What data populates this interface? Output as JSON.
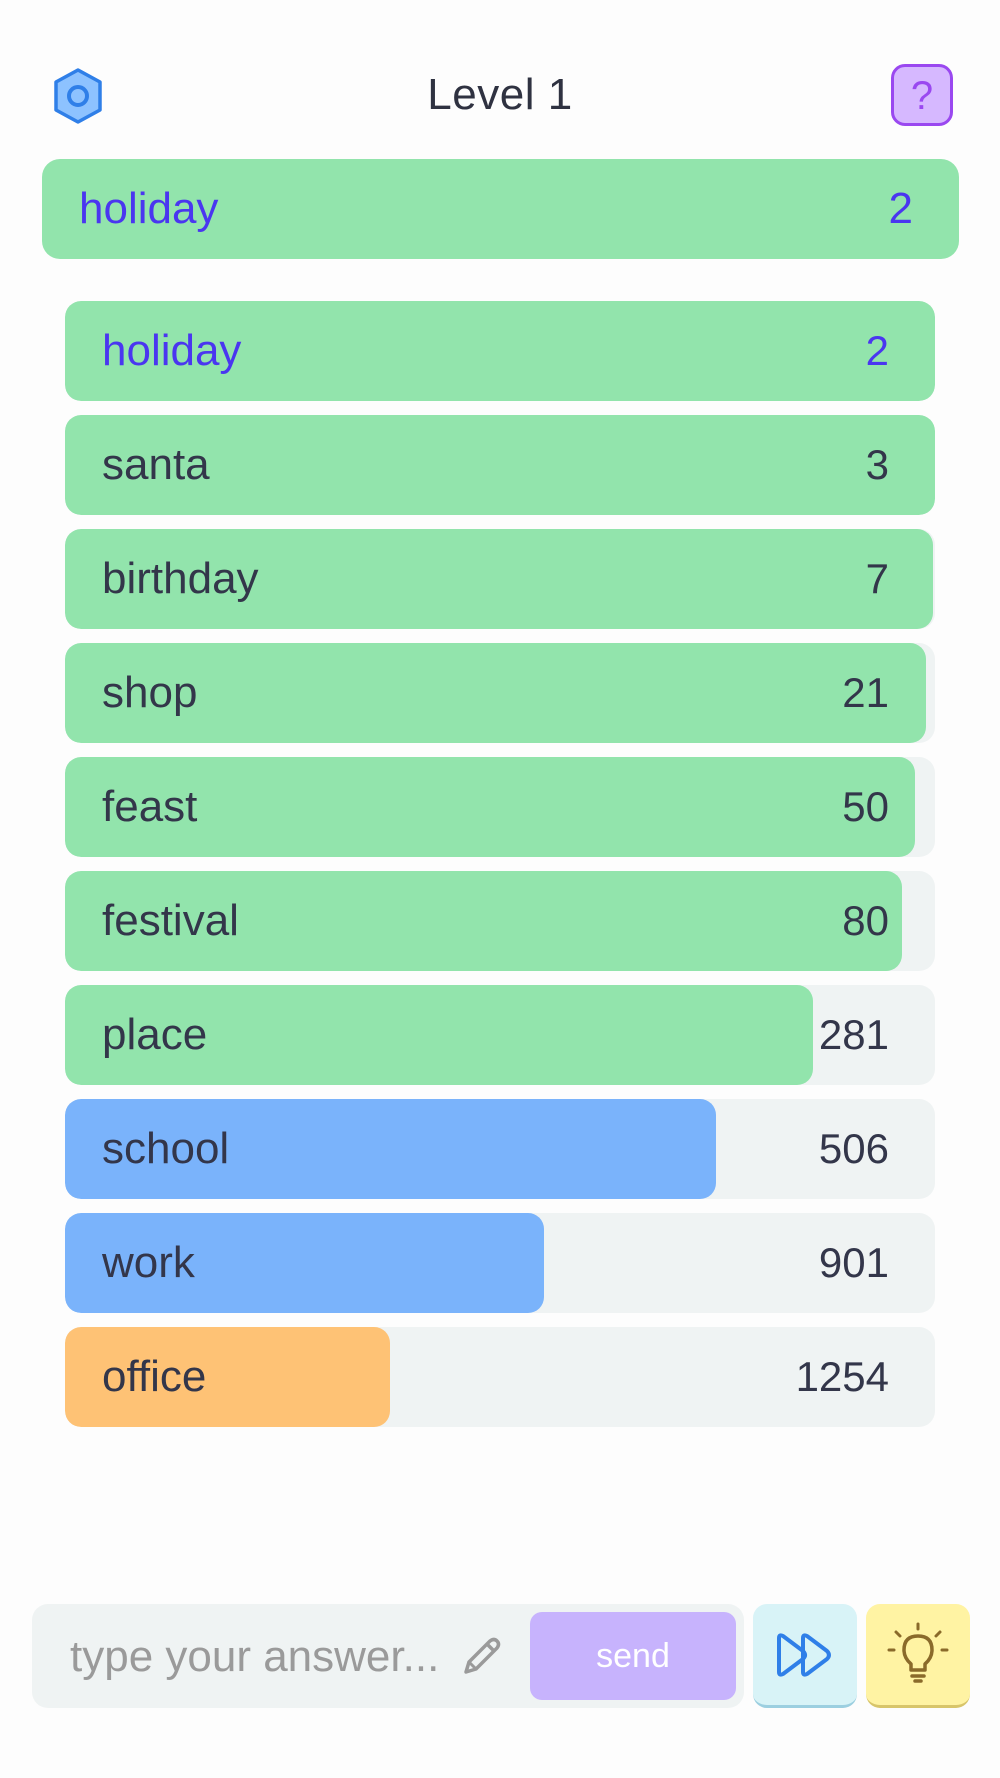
{
  "header": {
    "title": "Level 1",
    "settings_icon": "gear-icon",
    "help_icon": "question-icon",
    "help_text": "?"
  },
  "last_guess": {
    "word": "holiday",
    "rank": "2",
    "color": "#92e4ac"
  },
  "guesses": [
    {
      "word": "holiday",
      "rank": "2",
      "closeness": 1.0,
      "color": "#92e4ac",
      "current": true
    },
    {
      "word": "santa",
      "rank": "3",
      "closeness": 1.0,
      "color": "#92e4ac",
      "current": false
    },
    {
      "word": "birthday",
      "rank": "7",
      "closeness": 0.998,
      "color": "#92e4ac",
      "current": false
    },
    {
      "word": "shop",
      "rank": "21",
      "closeness": 0.99,
      "color": "#92e4ac",
      "current": false
    },
    {
      "word": "feast",
      "rank": "50",
      "closeness": 0.977,
      "color": "#92e4ac",
      "current": false
    },
    {
      "word": "festival",
      "rank": "80",
      "closeness": 0.962,
      "color": "#92e4ac",
      "current": false
    },
    {
      "word": "place",
      "rank": "281",
      "closeness": 0.86,
      "color": "#92e4ac",
      "current": false
    },
    {
      "word": "school",
      "rank": "506",
      "closeness": 0.748,
      "color": "#7ab3fb",
      "current": false
    },
    {
      "word": "work",
      "rank": "901",
      "closeness": 0.55,
      "color": "#7ab3fb",
      "current": false
    },
    {
      "word": "office",
      "rank": "1254",
      "closeness": 0.373,
      "color": "#fec275",
      "current": false
    }
  ],
  "input": {
    "placeholder": "type your answer...",
    "value": "",
    "edit_icon": "pencil-icon",
    "send_label": "send"
  },
  "actions": {
    "skip_icon": "fast-forward-icon",
    "hint_icon": "lightbulb-icon"
  }
}
